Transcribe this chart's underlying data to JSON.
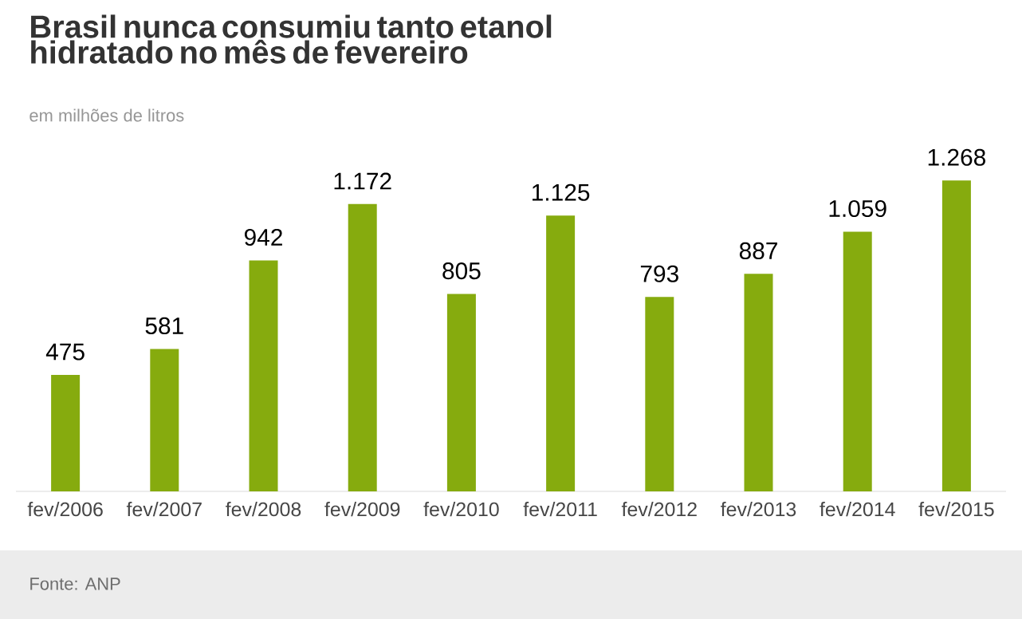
{
  "chart_data": {
    "type": "bar",
    "title": "Brasil nunca consumiu tanto etanol hidratado no mês de fevereiro",
    "subtitle": "em milhões de litros",
    "categories": [
      "fev/2006",
      "fev/2007",
      "fev/2008",
      "fev/2009",
      "fev/2010",
      "fev/2011",
      "fev/2012",
      "fev/2013",
      "fev/2014",
      "fev/2015"
    ],
    "values": [
      475,
      581,
      942,
      1172,
      805,
      1125,
      793,
      887,
      1059,
      1268
    ],
    "value_labels": [
      "475",
      "581",
      "942",
      "1.172",
      "805",
      "1.125",
      "793",
      "887",
      "1.059",
      "1.268"
    ],
    "color": "#86ab0e",
    "annotations": [
      "Fonte: ANP"
    ]
  }
}
